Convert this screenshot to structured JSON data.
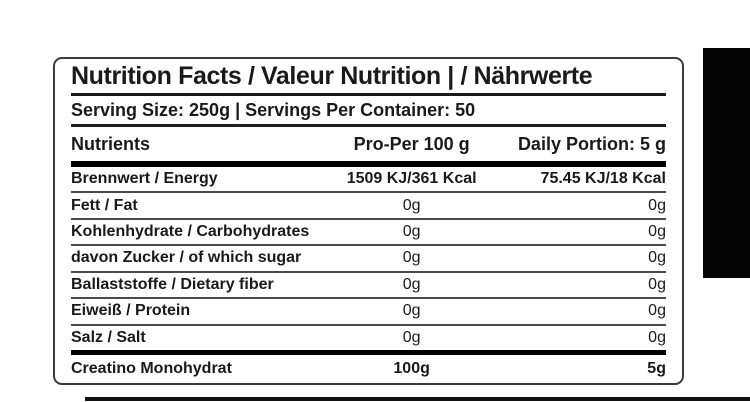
{
  "colors": {
    "text": "#1a1a1a",
    "table_border": "#3a3a3a",
    "separator": "#4a4a4a",
    "thick_bar": "#000000",
    "side_block": "#050505"
  },
  "label": {
    "title": "Nutrition Facts / Valeur Nutrition | / Nährwerte",
    "serving_line": "Serving Size: 250g | Servings Per Container: 50",
    "header": {
      "nutrients": "Nutrients",
      "per_100g": "Pro-Per 100 g",
      "daily_portion": "Daily Portion: 5 g"
    },
    "rows": [
      {
        "label": "Brennwert / Energy",
        "per_100g": "1509 KJ/361 Kcal",
        "daily_portion": "75.45 KJ/18 Kcal"
      },
      {
        "label": "Fett / Fat",
        "per_100g": "0g",
        "daily_portion": "0g"
      },
      {
        "label": "Kohlenhydrate / Carbohydrates",
        "per_100g": "0g",
        "daily_portion": "0g"
      },
      {
        "label": "davon Zucker / of which sugar",
        "per_100g": "0g",
        "daily_portion": "0g"
      },
      {
        "label": "Ballaststoffe / Dietary fiber",
        "per_100g": "0g",
        "daily_portion": "0g"
      },
      {
        "label": "Eiweiß / Protein",
        "per_100g": "0g",
        "daily_portion": "0g"
      },
      {
        "label": "Salz / Salt",
        "per_100g": "0g",
        "daily_portion": "0g"
      }
    ],
    "footer_row": {
      "label": "Creatino Monohydrat",
      "per_100g": "100g",
      "daily_portion": "5g"
    }
  }
}
